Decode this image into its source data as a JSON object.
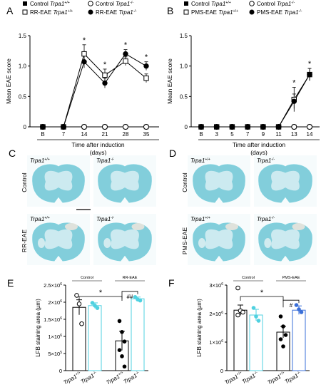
{
  "panels": {
    "A": "A",
    "B": "B",
    "C": "C",
    "D": "D",
    "E": "E",
    "F": "F"
  },
  "chart_data": [
    {
      "panel": "A",
      "type": "line",
      "xlabel": "Time after induction",
      "xlabel2": "(days)",
      "ylabel": "Mean EAE score",
      "categories": [
        "B",
        "7",
        "14",
        "21",
        "28",
        "35"
      ],
      "ylim": [
        0,
        1.5
      ],
      "yticks": [
        "0",
        "0.5",
        "1.0",
        "1.5"
      ],
      "legend": {
        "placement": "top",
        "entries": [
          {
            "prefix": "Control ",
            "gene": "Trpa1",
            "sup": "+/+",
            "marker": "filled-square"
          },
          {
            "prefix": "Control ",
            "gene": "Trpa1",
            "sup": "-/-",
            "marker": "open-circle"
          },
          {
            "prefix": "RR-EAE ",
            "gene": "Trpa1",
            "sup": "+/+",
            "marker": "open-square"
          },
          {
            "prefix": "RR-EAE ",
            "gene": "Trpa1",
            "sup": "-/-",
            "marker": "filled-circle"
          }
        ]
      },
      "series": [
        {
          "name": "Control Trpa1+/+",
          "marker": "filled-square",
          "values": [
            0,
            0,
            0,
            0,
            0,
            0
          ]
        },
        {
          "name": "Control Trpa1-/-",
          "marker": "open-circle",
          "values": [
            0,
            0,
            0,
            0,
            0,
            0
          ]
        },
        {
          "name": "RR-EAE Trpa1+/+",
          "marker": "open-square",
          "values": [
            0,
            0,
            1.2,
            0.85,
            1.08,
            0.8
          ],
          "errors": [
            0,
            0,
            0.15,
            0.1,
            0.07,
            0.07
          ]
        },
        {
          "name": "RR-EAE Trpa1-/-",
          "marker": "filled-circle",
          "values": [
            0,
            0,
            1.07,
            0.72,
            1.2,
            1.0
          ],
          "errors": [
            0,
            0,
            0.1,
            0.08,
            0.07,
            0.07
          ]
        }
      ],
      "significance": [
        {
          "index": 2,
          "label": "*"
        },
        {
          "index": 3,
          "label": "*"
        },
        {
          "index": 4,
          "label": "*"
        },
        {
          "index": 5,
          "label": "*"
        }
      ]
    },
    {
      "panel": "B",
      "type": "line",
      "xlabel": "Time after induction",
      "xlabel2": "(days)",
      "ylabel": "Mean EAE score",
      "categories": [
        "B",
        "3",
        "5",
        "7",
        "9",
        "11",
        "13",
        "14"
      ],
      "ylim": [
        0,
        1.5
      ],
      "yticks": [
        "0",
        "0.5",
        "1.0",
        "1.5"
      ],
      "legend": {
        "placement": "top",
        "entries": [
          {
            "prefix": "Control ",
            "gene": "Trpa1",
            "sup": "+/+",
            "marker": "filled-square"
          },
          {
            "prefix": "Control ",
            "gene": "Trpa1",
            "sup": "-/-",
            "marker": "open-circle"
          },
          {
            "prefix": "PMS-EAE ",
            "gene": "Trpa1",
            "sup": "+/+",
            "marker": "open-square"
          },
          {
            "prefix": "PMS-EAE ",
            "gene": "Trpa1",
            "sup": "-/-",
            "marker": "filled-circle"
          }
        ]
      },
      "series": [
        {
          "name": "Control Trpa1+/+",
          "marker": "filled-square",
          "values": [
            0,
            0,
            0,
            0,
            0,
            0,
            0,
            0
          ]
        },
        {
          "name": "Control Trpa1-/-",
          "marker": "open-circle",
          "values": [
            0,
            0,
            0,
            0,
            0,
            0,
            0,
            0
          ]
        },
        {
          "name": "PMS-EAE Trpa1+/+",
          "marker": "open-square",
          "values": [
            0,
            0,
            0,
            0,
            0,
            0,
            0.45,
            0.86
          ],
          "errors": [
            0,
            0,
            0,
            0,
            0,
            0,
            0.2,
            0.1
          ]
        },
        {
          "name": "PMS-EAE Trpa1-/-",
          "marker": "filled-circle",
          "values": [
            0,
            0,
            0,
            0,
            0,
            0,
            0.42,
            0.86
          ],
          "errors": [
            0,
            0,
            0,
            0,
            0,
            0,
            0.12,
            0.1
          ]
        }
      ],
      "significance": [
        {
          "index": 6,
          "label": "*"
        },
        {
          "index": 7,
          "label": "*"
        }
      ]
    },
    {
      "panel": "E",
      "type": "bar",
      "ylabel": "LFB staining area (µm)",
      "ylim": [
        0,
        2500000
      ],
      "yticks": [
        {
          "v": 0,
          "base": "0",
          "exp": ""
        },
        {
          "v": 500000,
          "base": "5×10",
          "exp": "5"
        },
        {
          "v": 1000000,
          "base": "1×10",
          "exp": "6"
        },
        {
          "v": 1500000,
          "base": "1.5×10",
          "exp": "6"
        },
        {
          "v": 2000000,
          "base": "2×10",
          "exp": "6"
        },
        {
          "v": 2500000,
          "base": "2.5×10",
          "exp": "6"
        }
      ],
      "groups": [
        {
          "label": "Control",
          "bars": [
            0,
            1
          ]
        },
        {
          "label": "RR-EAE",
          "bars": [
            2,
            3
          ]
        }
      ],
      "bars": [
        {
          "gene": "Trpa1",
          "sup": "+/+",
          "value": 1850000,
          "error": 220000,
          "color": "#000000",
          "points": [
            2200000,
            1950000,
            1370000
          ]
        },
        {
          "gene": "Trpa1",
          "sup": "-/-",
          "value": 1900000,
          "error": 80000,
          "color": "#4fd1e0",
          "points": [
            1980000,
            1900000,
            1830000
          ]
        },
        {
          "gene": "Trpa1",
          "sup": "+/+",
          "value": 870000,
          "error": 280000,
          "color": "#000000",
          "points": [
            1450000,
            1130000,
            850000,
            600000,
            420000,
            120000
          ]
        },
        {
          "gene": "Trpa1",
          "sup": "-/-",
          "value": 2100000,
          "error": 50000,
          "color": "#4fd1e0",
          "points": [
            2150000,
            2080000,
            2050000
          ]
        }
      ],
      "significance": [
        {
          "from": 0,
          "to": 2,
          "label": "*"
        },
        {
          "from": 2,
          "to": 3,
          "label": "##"
        }
      ]
    },
    {
      "panel": "F",
      "type": "bar",
      "ylabel": "LFB staining area (µm)",
      "ylim": [
        0,
        3000000
      ],
      "yticks": [
        {
          "v": 0,
          "base": "0",
          "exp": ""
        },
        {
          "v": 1000000,
          "base": "1×10",
          "exp": "6"
        },
        {
          "v": 2000000,
          "base": "2×10",
          "exp": "6"
        },
        {
          "v": 3000000,
          "base": "3×10",
          "exp": "6"
        }
      ],
      "groups": [
        {
          "label": "Control",
          "bars": [
            0,
            1
          ]
        },
        {
          "label": "PMS-EAE",
          "bars": [
            2,
            3
          ]
        }
      ],
      "bars": [
        {
          "gene": "Trpa1",
          "sup": "+/+",
          "value": 2120000,
          "error": 180000,
          "color": "#000000",
          "points": [
            2900000,
            2100000,
            2050000,
            1950000
          ]
        },
        {
          "gene": "Trpa1",
          "sup": "-/-",
          "value": 1950000,
          "error": 200000,
          "color": "#4fd1e0",
          "points": [
            2200000,
            1900000,
            1750000
          ]
        },
        {
          "gene": "Trpa1",
          "sup": "+/+",
          "value": 1350000,
          "error": 200000,
          "color": "#000000",
          "points": [
            1900000,
            1550000,
            1250000,
            1100000,
            850000
          ]
        },
        {
          "gene": "Trpa1",
          "sup": "-/-",
          "value": 2120000,
          "error": 150000,
          "color": "#3a6fd8",
          "points": [
            2300000,
            2150000,
            2050000
          ]
        }
      ],
      "significance": [
        {
          "from": 0,
          "to": 2,
          "label": "*"
        },
        {
          "from": 2,
          "to": 3,
          "label": "#"
        }
      ]
    }
  ],
  "histology": {
    "C": {
      "rows": [
        "Control",
        "RR-EAE"
      ],
      "cols": [
        {
          "gene": "Trpa1",
          "sup": "+/+"
        },
        {
          "gene": "Trpa1",
          "sup": "-/-"
        }
      ]
    },
    "D": {
      "rows": [
        "Control",
        "PMS-EAE"
      ],
      "cols": [
        {
          "gene": "Trpa1",
          "sup": "+/+"
        },
        {
          "gene": "Trpa1",
          "sup": "-/-"
        }
      ]
    },
    "stain_color": "#5bbfd0"
  }
}
